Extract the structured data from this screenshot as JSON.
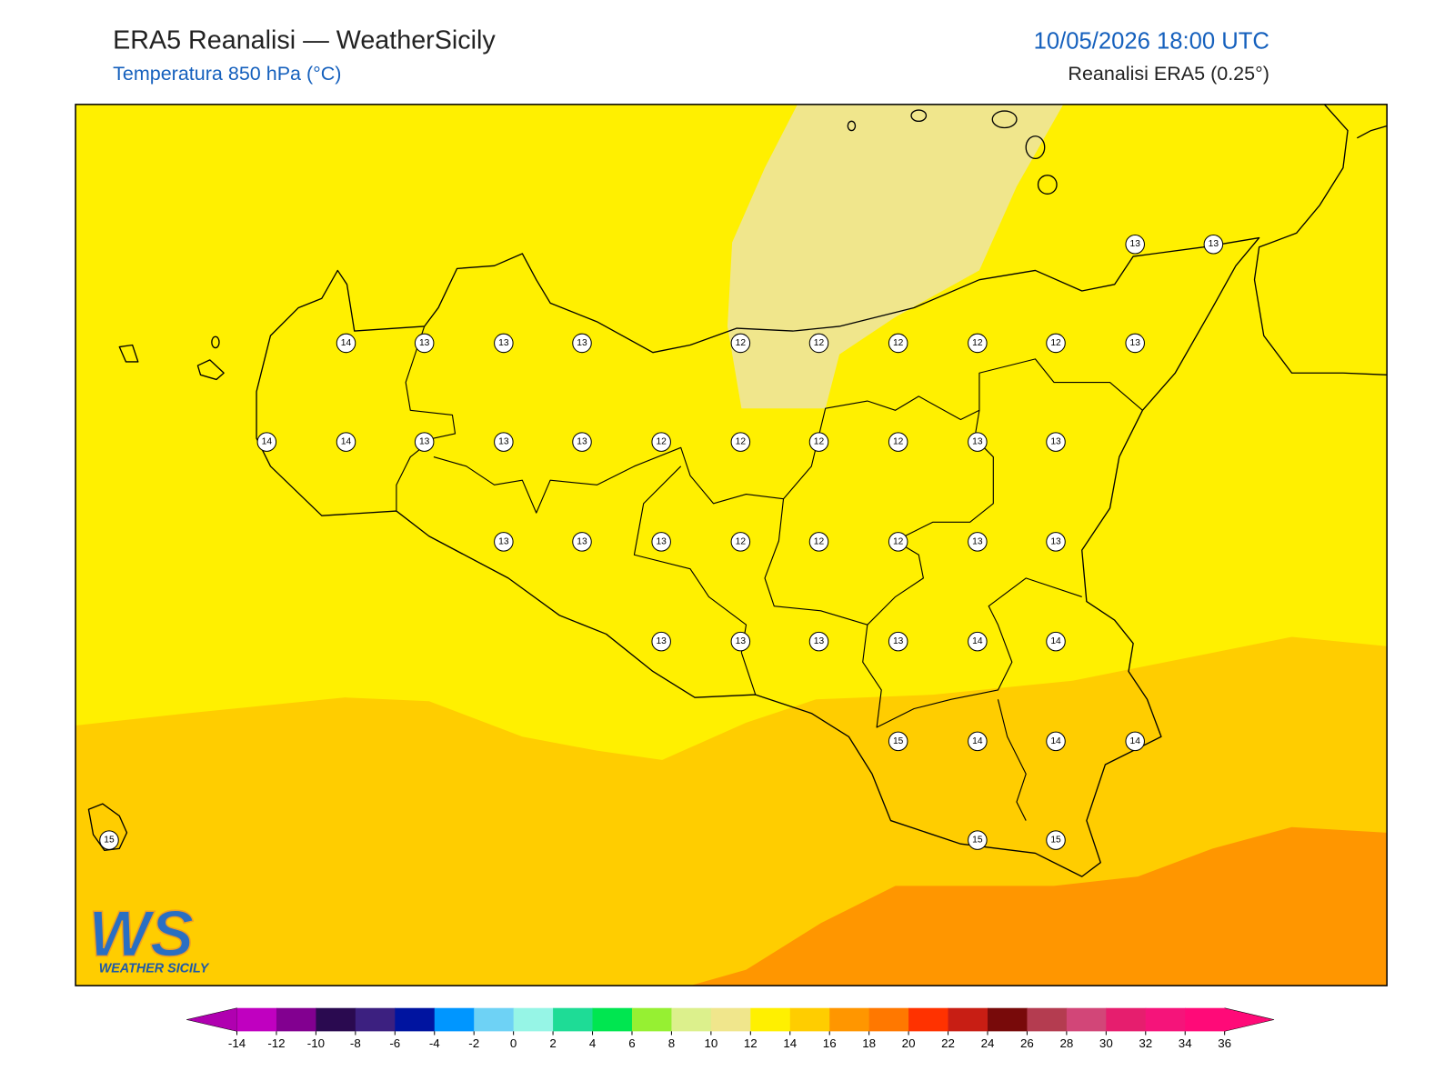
{
  "header": {
    "title": "ERA5 Reanalisi — WeatherSicily",
    "subtitle": "Temperatura 850 hPa (°C)",
    "datetime": "10/05/2026 18:00 UTC",
    "source": "Reanalisi ERA5 (0.25°)"
  },
  "map": {
    "stations": [
      13,
      13,
      14,
      13,
      13,
      13,
      12,
      12,
      12,
      12,
      12,
      13,
      14,
      14,
      13,
      13,
      13,
      12,
      12,
      12,
      12,
      13,
      13,
      13,
      13,
      13,
      12,
      12,
      12,
      13,
      13,
      13,
      13,
      13,
      13,
      14,
      14,
      15,
      14,
      14,
      14,
      15,
      15,
      15
    ]
  },
  "logo": {
    "mark": "WS",
    "name": "WEATHER SICILY"
  },
  "colorbar": {
    "ticks": [
      -14,
      -12,
      -10,
      -8,
      -6,
      -4,
      -2,
      0,
      2,
      4,
      6,
      8,
      10,
      12,
      14,
      16,
      18,
      20,
      22,
      24,
      26,
      28,
      30,
      32,
      34,
      36
    ],
    "colors": [
      "#c000c0",
      "#820090",
      "#2a0a50",
      "#3c2080",
      "#0014a0",
      "#0096ff",
      "#6ed2f5",
      "#96f5e6",
      "#1edc96",
      "#00e650",
      "#96f032",
      "#dcf08c",
      "#f0e68c",
      "#fff000",
      "#ffcd00",
      "#ff9600",
      "#ff7800",
      "#ff3200",
      "#c81e14",
      "#780a0a",
      "#b43c50",
      "#d24678",
      "#e61e6e",
      "#f5147a",
      "#ff0a78"
    ],
    "under": "#b000b0",
    "over": "#ff0a78"
  }
}
